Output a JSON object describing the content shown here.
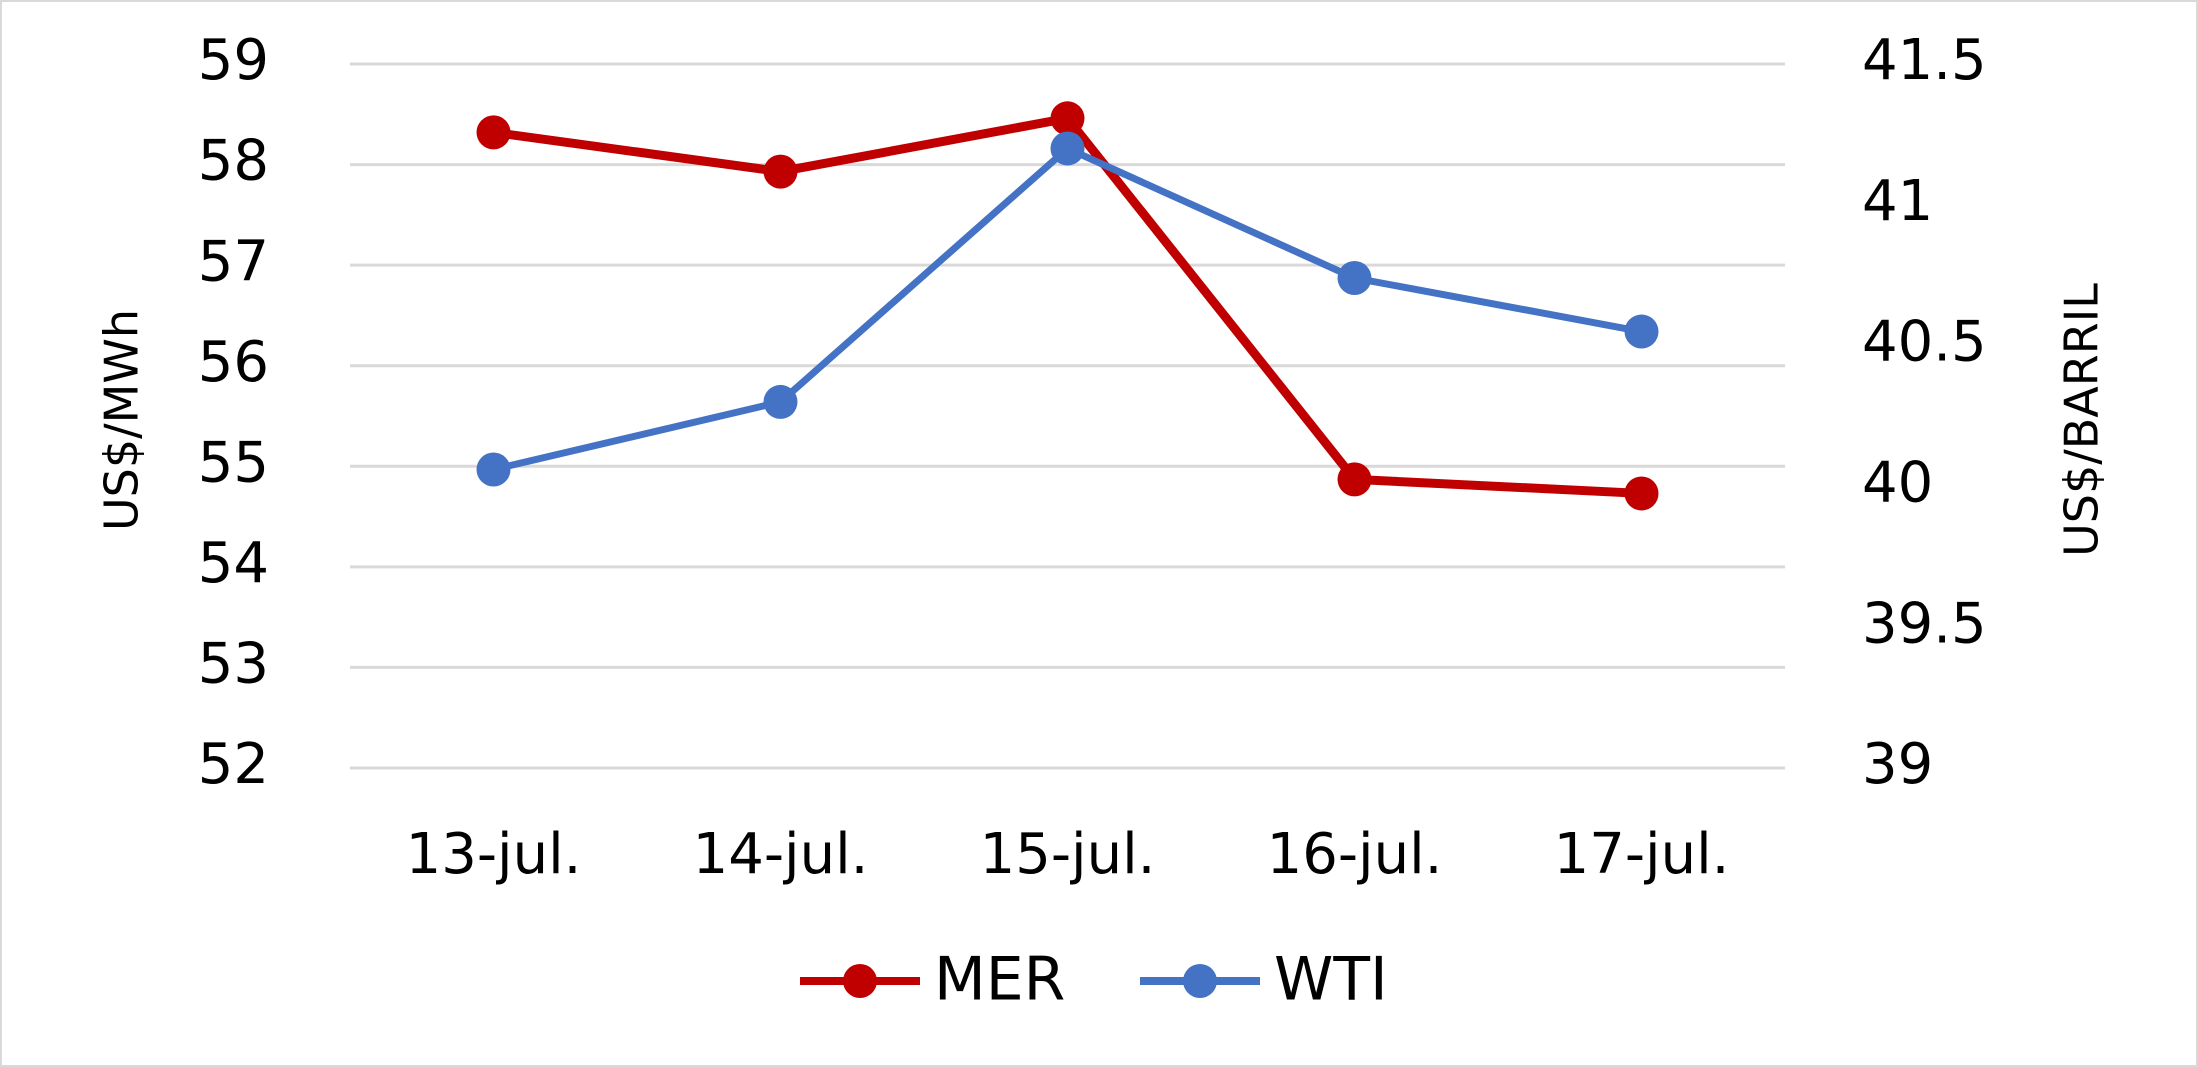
{
  "chart_data": {
    "type": "line",
    "categories": [
      "13-jul.",
      "14-jul.",
      "15-jul.",
      "16-jul.",
      "17-jul."
    ],
    "series": [
      {
        "name": "MER",
        "color": "#c00000",
        "values": [
          58.32,
          57.93,
          58.46,
          54.87,
          54.73
        ]
      },
      {
        "name": "WTI",
        "color": "#4472c4",
        "axis": "y2",
        "values": [
          40.06,
          40.3,
          41.2,
          40.74,
          40.55
        ]
      }
    ],
    "ylabel": "US$/MWh",
    "y2label": "US$/BARRIL",
    "ylim": [
      52,
      59
    ],
    "yticks": [
      52,
      53,
      54,
      55,
      56,
      57,
      58,
      59
    ],
    "y2lim": [
      39,
      41.5
    ],
    "y2ticks": [
      39,
      39.5,
      40,
      40.5,
      41,
      41.5
    ],
    "grid": true,
    "legend": "bottom"
  }
}
